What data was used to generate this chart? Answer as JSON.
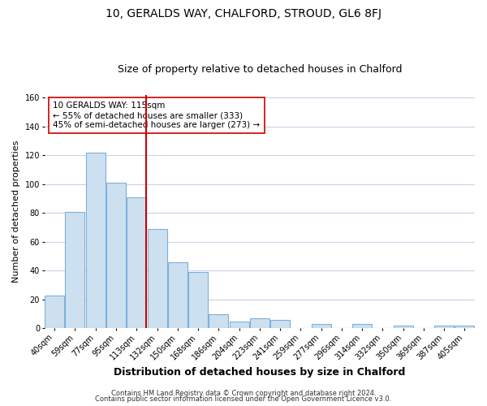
{
  "title": "10, GERALDS WAY, CHALFORD, STROUD, GL6 8FJ",
  "subtitle": "Size of property relative to detached houses in Chalford",
  "xlabel": "Distribution of detached houses by size in Chalford",
  "ylabel": "Number of detached properties",
  "bar_labels": [
    "40sqm",
    "59sqm",
    "77sqm",
    "95sqm",
    "113sqm",
    "132sqm",
    "150sqm",
    "168sqm",
    "186sqm",
    "204sqm",
    "223sqm",
    "241sqm",
    "259sqm",
    "277sqm",
    "296sqm",
    "314sqm",
    "332sqm",
    "350sqm",
    "369sqm",
    "387sqm",
    "405sqm"
  ],
  "bar_values": [
    23,
    81,
    122,
    101,
    91,
    69,
    46,
    39,
    10,
    5,
    7,
    6,
    0,
    3,
    0,
    3,
    0,
    2,
    0,
    2,
    2
  ],
  "bar_color": "#cce0f0",
  "bar_edge_color": "#7fb0d8",
  "vline_color": "#cc0000",
  "annotation_text": "10 GERALDS WAY: 115sqm\n← 55% of detached houses are smaller (333)\n45% of semi-detached houses are larger (273) →",
  "annotation_box_color": "#ffffff",
  "annotation_box_edge": "#cc0000",
  "ylim": [
    0,
    162
  ],
  "yticks": [
    0,
    20,
    40,
    60,
    80,
    100,
    120,
    140,
    160
  ],
  "footer_line1": "Contains HM Land Registry data © Crown copyright and database right 2024.",
  "footer_line2": "Contains public sector information licensed under the Open Government Licence v3.0.",
  "bg_color": "#ffffff",
  "grid_color": "#c8d4e8",
  "title_fontsize": 10,
  "subtitle_fontsize": 9,
  "xlabel_fontsize": 9,
  "ylabel_fontsize": 8,
  "tick_fontsize": 7,
  "footer_fontsize": 6,
  "annot_fontsize": 7.5
}
